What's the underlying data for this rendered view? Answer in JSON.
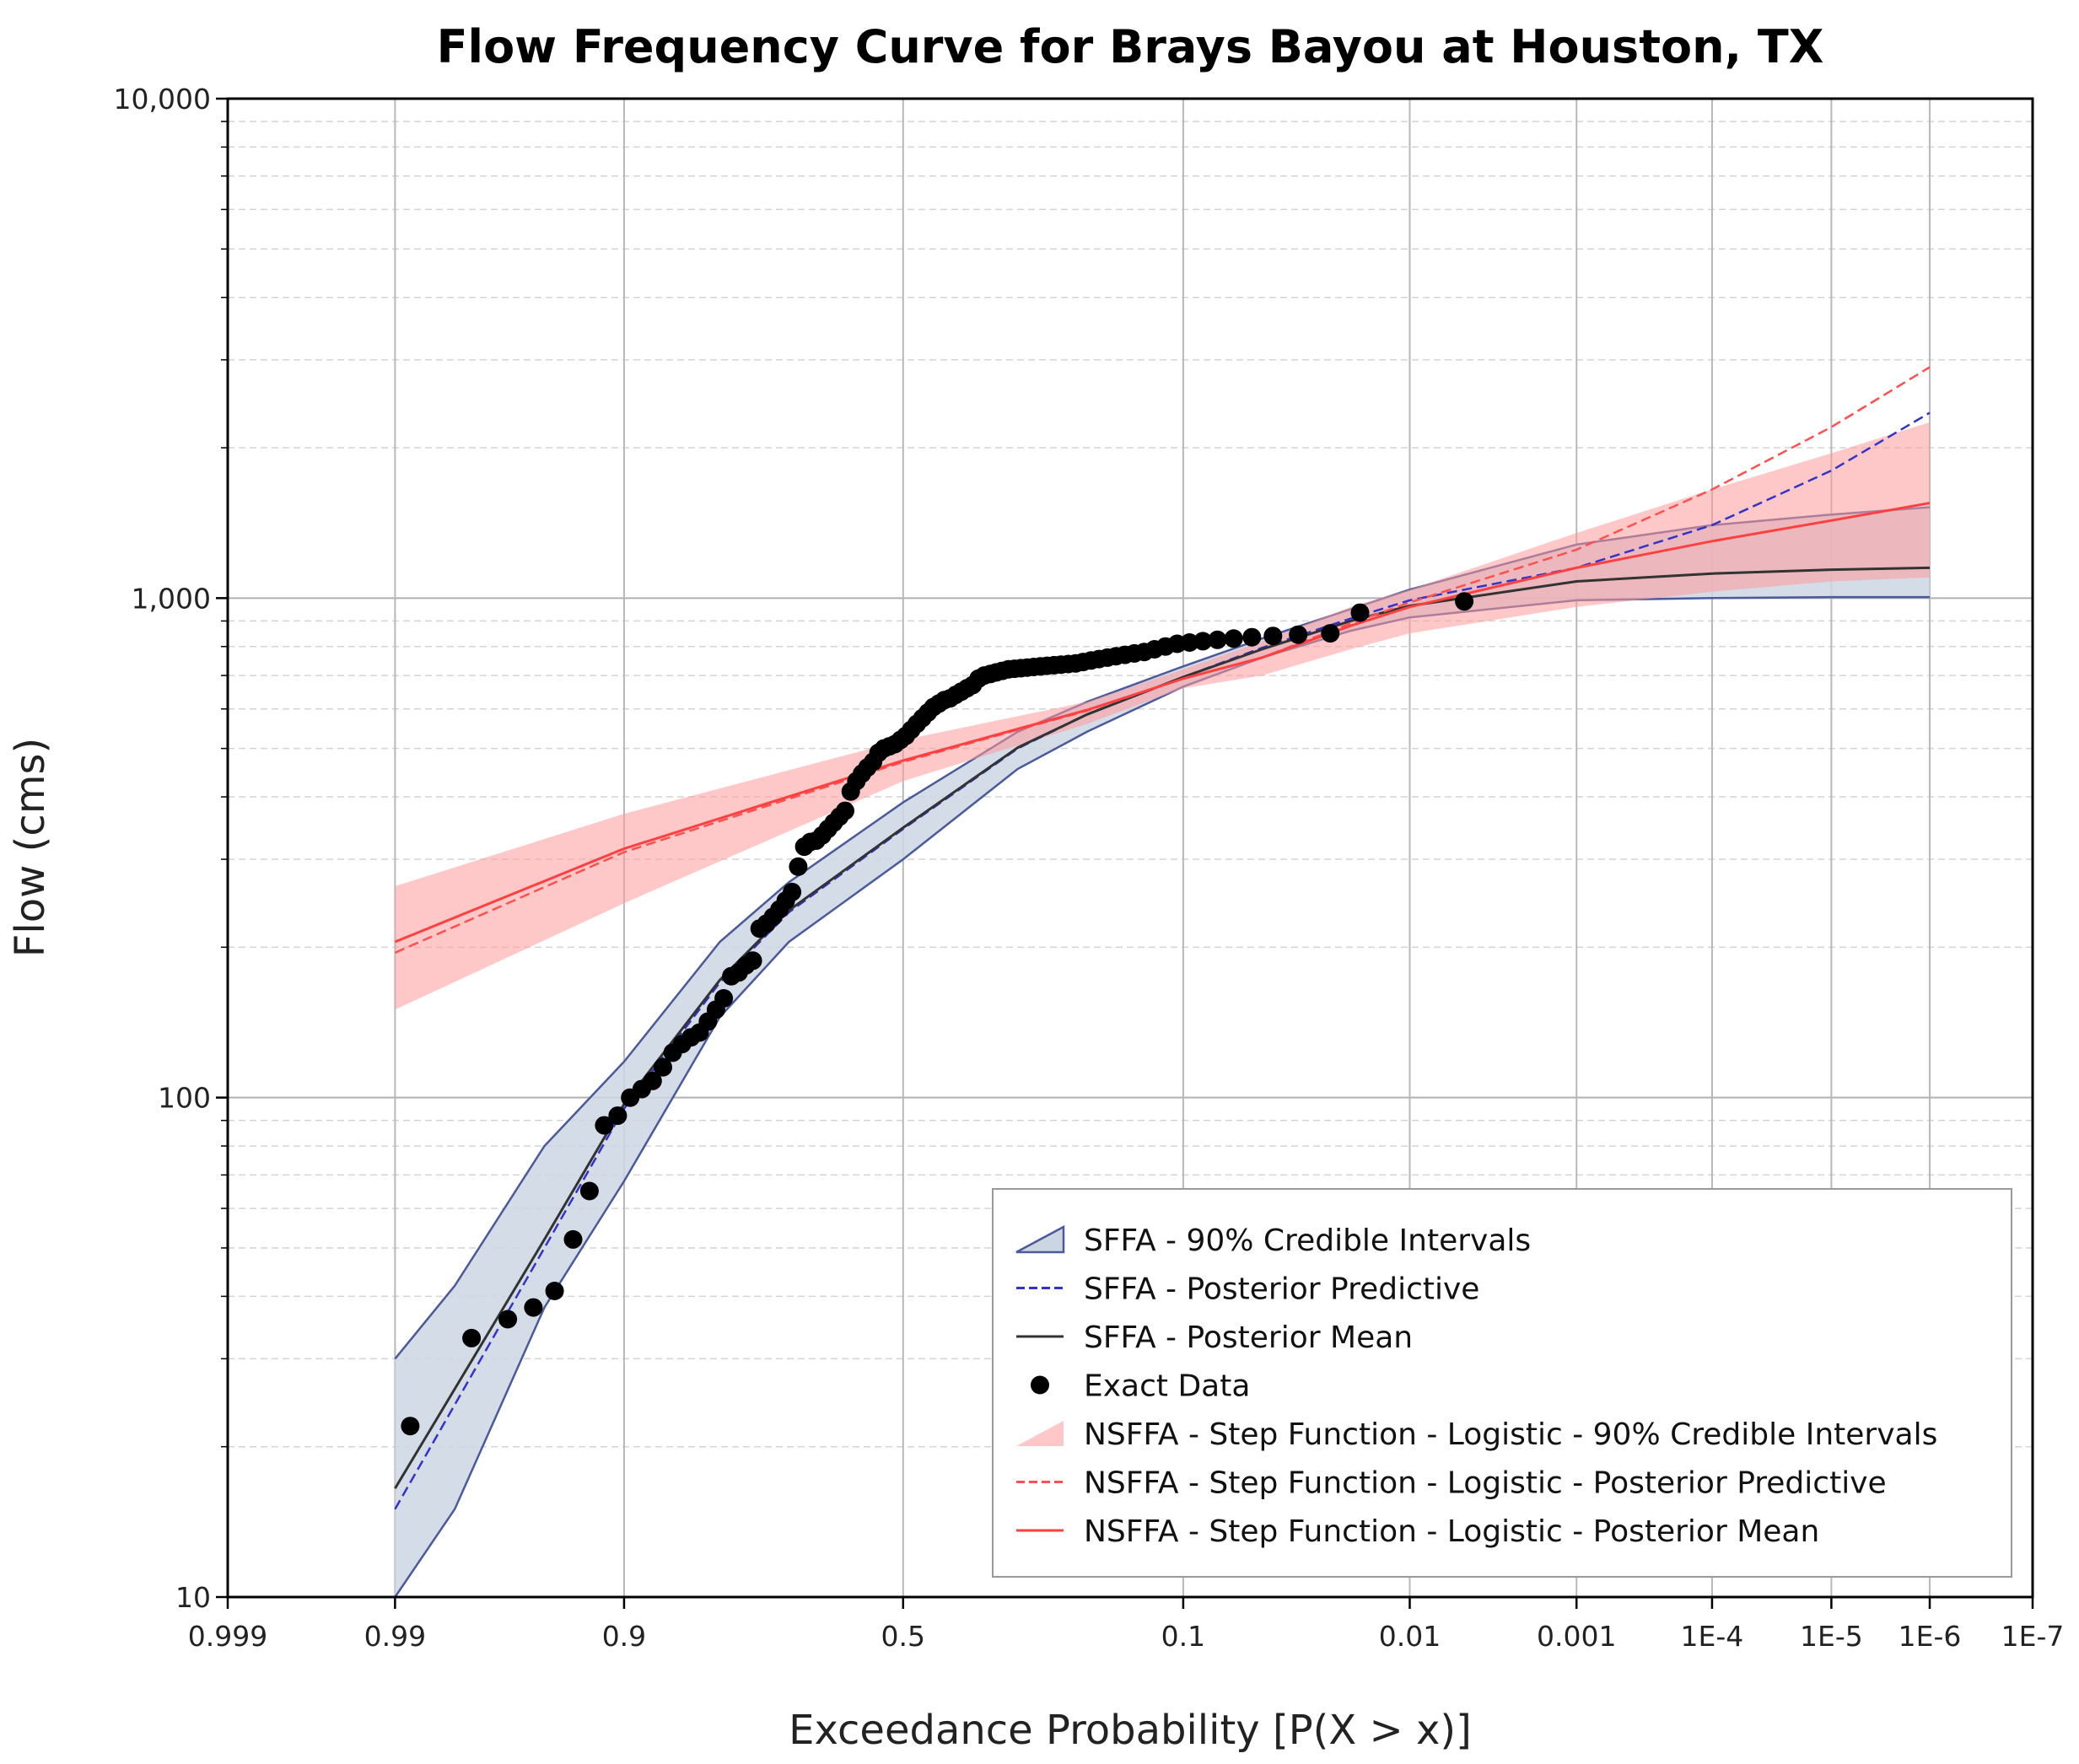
{
  "chart_data": {
    "type": "line",
    "title": "Flow Frequency Curve for Brays Bayou at Houston, TX",
    "xlabel": "Exceedance Probability  [P(X > x)]",
    "ylabel": "Flow (cms)",
    "x_scale": "probability-logistic",
    "y_scale": "log",
    "ylim": [
      10,
      10000
    ],
    "xlim": [
      0.999,
      1e-07
    ],
    "grid": true,
    "legend_position": "bottom-right",
    "x_ticks": [
      {
        "value": 0.999,
        "label": "0.999"
      },
      {
        "value": 0.99,
        "label": "0.99"
      },
      {
        "value": 0.9,
        "label": "0.9"
      },
      {
        "value": 0.5,
        "label": "0.5"
      },
      {
        "value": 0.1,
        "label": "0.1"
      },
      {
        "value": 0.01,
        "label": "0.01"
      },
      {
        "value": 0.001,
        "label": "0.001"
      },
      {
        "value": 0.0001,
        "label": "1E-4"
      },
      {
        "value": 1e-05,
        "label": "1E-5"
      },
      {
        "value": 1e-06,
        "label": "1E-6"
      },
      {
        "value": 1e-07,
        "label": "1E-7"
      }
    ],
    "y_ticks": [
      {
        "value": 10,
        "label": "10"
      },
      {
        "value": 100,
        "label": "100"
      },
      {
        "value": 1000,
        "label": "1,000"
      },
      {
        "value": 10000,
        "label": "10,000"
      }
    ],
    "bands": [
      {
        "name": "SFFA - 90% Credible Intervals",
        "fill": "#ccd6e3",
        "stroke": "#4a5a9a",
        "x": [
          0.99,
          0.98,
          0.95,
          0.9,
          0.8,
          0.7,
          0.5,
          0.3,
          0.2,
          0.1,
          0.05,
          0.02,
          0.01,
          0.001,
          0.0001,
          1e-05,
          1e-06
        ],
        "lower": [
          9,
          15,
          38,
          68,
          145,
          205,
          300,
          455,
          540,
          665,
          760,
          860,
          915,
          990,
          1000,
          1005,
          1005
        ],
        "upper": [
          30,
          42,
          80,
          118,
          205,
          270,
          390,
          540,
          620,
          730,
          830,
          950,
          1040,
          1280,
          1400,
          1470,
          1520
        ]
      },
      {
        "name": "NSFFA - Step Function - Logistic - 90% Credible Intervals",
        "fill": "#ff9a9a",
        "opacity": 0.55,
        "x": [
          0.99,
          0.9,
          0.5,
          0.2,
          0.1,
          0.05,
          0.02,
          0.01,
          0.001,
          0.0001,
          1e-05,
          1e-06
        ],
        "lower": [
          150,
          245,
          430,
          560,
          660,
          700,
          790,
          850,
          960,
          1030,
          1080,
          1100
        ],
        "upper": [
          265,
          370,
          520,
          620,
          720,
          820,
          960,
          1040,
          1350,
          1650,
          1950,
          2250
        ]
      }
    ],
    "series": [
      {
        "name": "SFFA - Posterior Predictive",
        "style": "dashed",
        "color": "#3333cc",
        "x": [
          0.99,
          0.95,
          0.9,
          0.8,
          0.7,
          0.5,
          0.3,
          0.2,
          0.1,
          0.05,
          0.02,
          0.01,
          0.001,
          0.0001,
          1e-05,
          1e-06
        ],
        "y": [
          15,
          50,
          95,
          170,
          235,
          345,
          500,
          585,
          695,
          795,
          910,
          990,
          1150,
          1400,
          1800,
          2350
        ]
      },
      {
        "name": "SFFA - Posterior Mean",
        "style": "solid",
        "color": "#333333",
        "x": [
          0.99,
          0.95,
          0.9,
          0.8,
          0.7,
          0.5,
          0.3,
          0.2,
          0.1,
          0.05,
          0.02,
          0.01,
          0.001,
          0.0001,
          1e-05,
          1e-06
        ],
        "y": [
          16.5,
          52,
          97,
          172,
          237,
          347,
          502,
          585,
          695,
          790,
          900,
          965,
          1080,
          1120,
          1140,
          1150
        ]
      },
      {
        "name": "NSFFA - Step Function - Logistic - Posterior Predictive",
        "style": "dashed",
        "color": "#ff5050",
        "x": [
          0.99,
          0.9,
          0.5,
          0.3,
          0.2,
          0.1,
          0.05,
          0.02,
          0.01,
          0.001,
          0.0001,
          1e-05,
          1e-06
        ],
        "y": [
          195,
          310,
          470,
          545,
          595,
          690,
          760,
          890,
          980,
          1250,
          1650,
          2200,
          2900
        ]
      },
      {
        "name": "NSFFA - Step Function - Logistic - Posterior Mean",
        "style": "solid",
        "color": "#ff4040",
        "x": [
          0.99,
          0.9,
          0.5,
          0.3,
          0.2,
          0.1,
          0.05,
          0.02,
          0.01,
          0.001,
          0.0001,
          1e-05,
          1e-06
        ],
        "y": [
          205,
          315,
          473,
          547,
          597,
          690,
          760,
          880,
          960,
          1150,
          1300,
          1430,
          1550
        ]
      }
    ],
    "points": {
      "name": "Exact Data",
      "color": "#000000",
      "x": [
        0.988,
        0.976,
        0.965,
        0.955,
        0.945,
        0.935,
        0.925,
        0.915,
        0.905,
        0.895,
        0.885,
        0.875,
        0.865,
        0.855,
        0.845,
        0.835,
        0.825,
        0.815,
        0.805,
        0.795,
        0.785,
        0.775,
        0.765,
        0.755,
        0.745,
        0.735,
        0.725,
        0.715,
        0.705,
        0.695,
        0.685,
        0.675,
        0.665,
        0.655,
        0.645,
        0.635,
        0.625,
        0.615,
        0.605,
        0.595,
        0.585,
        0.575,
        0.565,
        0.555,
        0.545,
        0.535,
        0.525,
        0.515,
        0.505,
        0.495,
        0.485,
        0.475,
        0.465,
        0.455,
        0.445,
        0.435,
        0.425,
        0.415,
        0.405,
        0.395,
        0.385,
        0.375,
        0.365,
        0.355,
        0.345,
        0.335,
        0.325,
        0.315,
        0.305,
        0.295,
        0.285,
        0.275,
        0.265,
        0.255,
        0.245,
        0.235,
        0.225,
        0.215,
        0.205,
        0.195,
        0.185,
        0.175,
        0.165,
        0.155,
        0.145,
        0.135,
        0.125,
        0.115,
        0.105,
        0.095,
        0.085,
        0.075,
        0.065,
        0.055,
        0.045,
        0.035,
        0.025,
        0.018,
        0.005
      ],
      "y": [
        22,
        33,
        36,
        38,
        41,
        52,
        65,
        88,
        92,
        100,
        104,
        108,
        115,
        123,
        128,
        132,
        135,
        142,
        150,
        158,
        175,
        178,
        184,
        188,
        218,
        223,
        230,
        238,
        248,
        258,
        290,
        318,
        325,
        327,
        335,
        345,
        355,
        365,
        375,
        410,
        430,
        445,
        458,
        470,
        490,
        500,
        505,
        510,
        520,
        530,
        545,
        560,
        575,
        590,
        605,
        615,
        625,
        630,
        640,
        650,
        660,
        670,
        690,
        700,
        705,
        710,
        715,
        720,
        722,
        724,
        726,
        728,
        730,
        732,
        734,
        736,
        738,
        740,
        745,
        750,
        755,
        760,
        765,
        770,
        775,
        780,
        790,
        800,
        810,
        815,
        820,
        825,
        830,
        835,
        840,
        845,
        850,
        935,
        985
      ]
    },
    "legend": [
      {
        "label": "SFFA - 90% Credible Intervals",
        "kind": "band-sffa"
      },
      {
        "label": "SFFA - Posterior Predictive",
        "kind": "dash-blue"
      },
      {
        "label": "SFFA - Posterior Mean",
        "kind": "line-dark"
      },
      {
        "label": "Exact Data",
        "kind": "dot"
      },
      {
        "label": "NSFFA - Step Function - Logistic - 90% Credible Intervals",
        "kind": "band-nsffa"
      },
      {
        "label": "NSFFA - Step Function - Logistic - Posterior Predictive",
        "kind": "dash-red"
      },
      {
        "label": "NSFFA - Step Function - Logistic - Posterior Mean",
        "kind": "line-red"
      }
    ]
  }
}
